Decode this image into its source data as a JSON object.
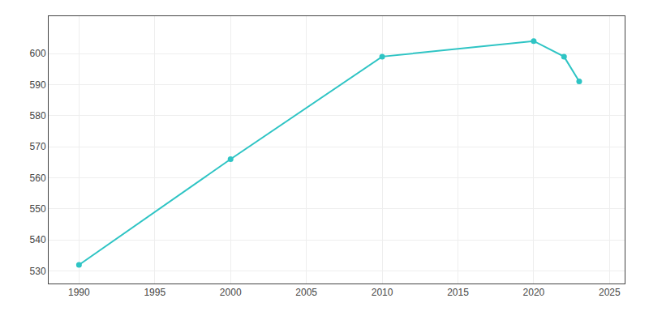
{
  "chart_data": {
    "type": "line",
    "x": [
      1990,
      2000,
      2010,
      2020,
      2022,
      2023
    ],
    "values": [
      532,
      566,
      599,
      604,
      599,
      591
    ],
    "color": "#2ec4c4",
    "marker": "circle",
    "xlim": [
      1988,
      2026
    ],
    "ylim": [
      526,
      612
    ],
    "xticks": [
      1990,
      1995,
      2000,
      2005,
      2010,
      2015,
      2020,
      2025
    ],
    "yticks": [
      530,
      540,
      550,
      560,
      570,
      580,
      590,
      600
    ],
    "grid": true
  }
}
